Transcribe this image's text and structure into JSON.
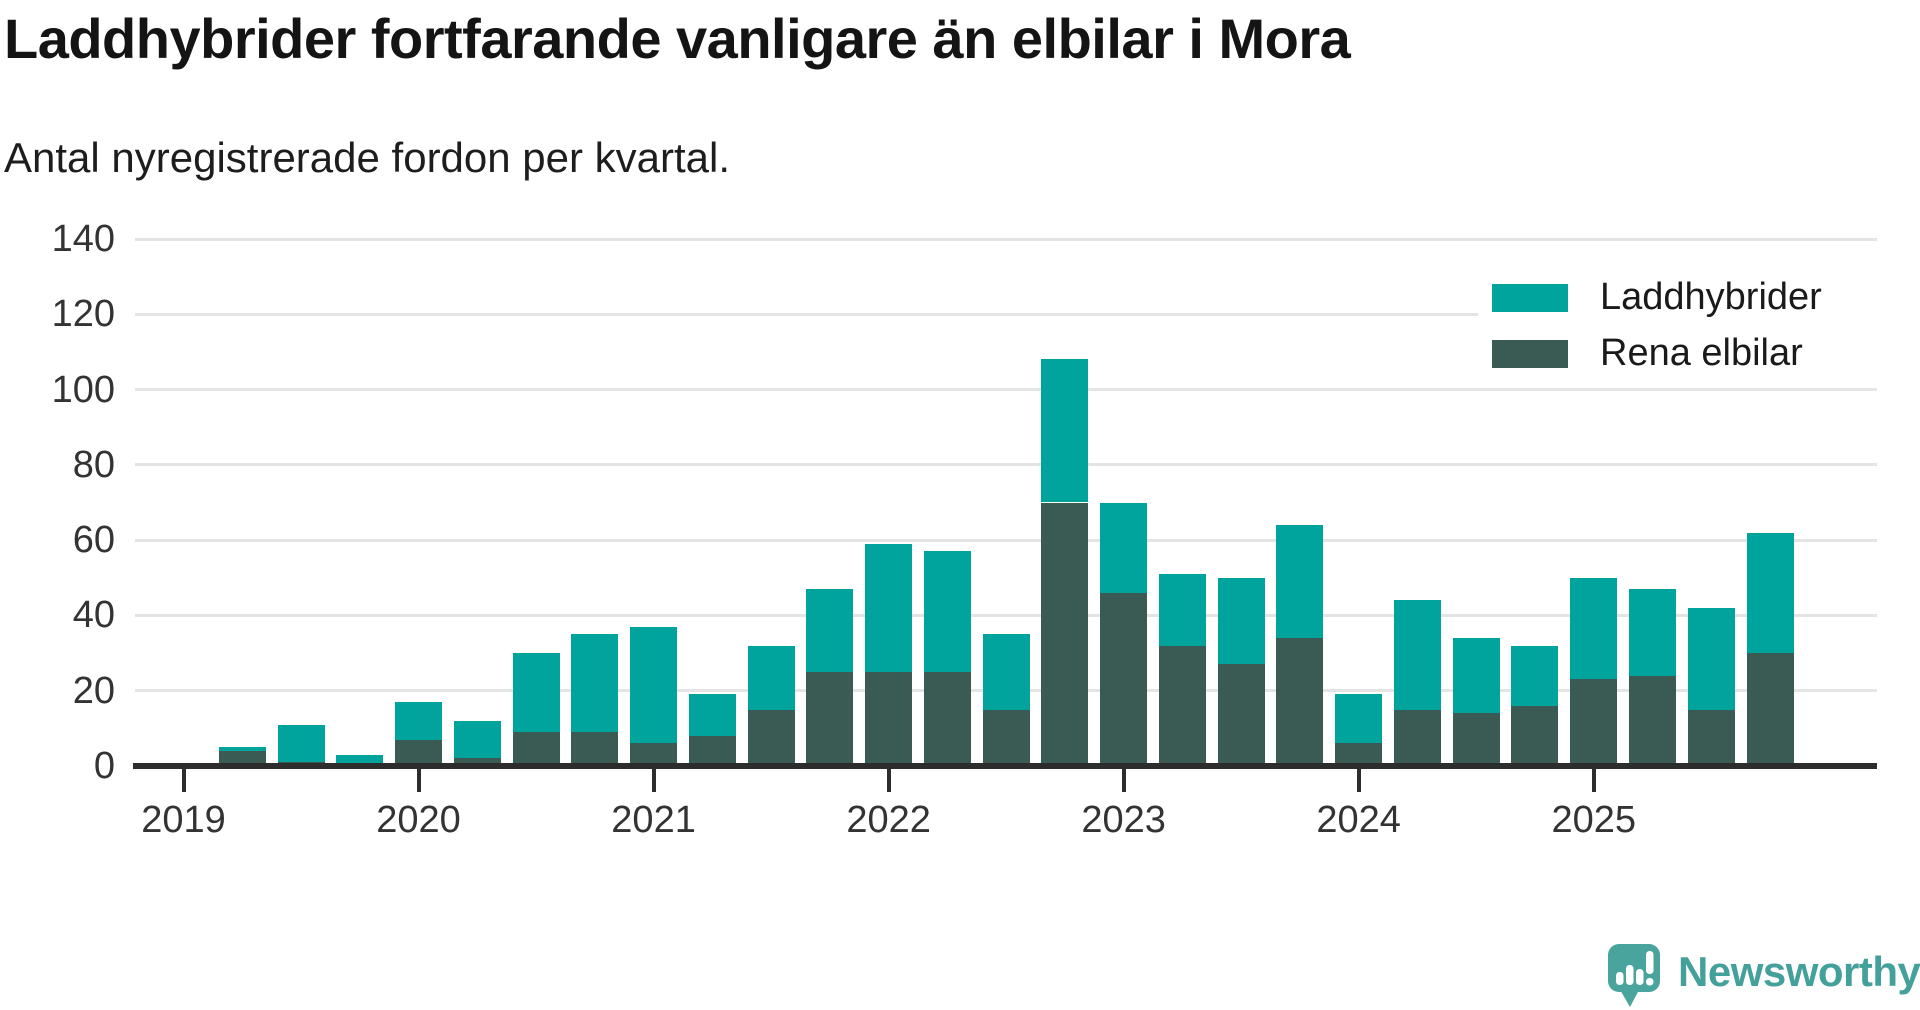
{
  "header": {
    "title": "Laddhybrider fortfarande vanligare än elbilar i Mora",
    "subtitle": "Antal nyregistrerade fordon per kvartal."
  },
  "colors": {
    "laddhybrider": "#00a49d",
    "rena_elbilar": "#3a5b53",
    "axis": "#2d2d2d",
    "grid": "#e4e4e4",
    "tick_text": "#333333",
    "logo": "#43a09a"
  },
  "legend": {
    "items": [
      {
        "label": "Laddhybrider",
        "color_key": "laddhybrider"
      },
      {
        "label": "Rena elbilar",
        "color_key": "rena_elbilar"
      }
    ]
  },
  "chart_data": {
    "type": "bar",
    "stacked": true,
    "title": "Laddhybrider fortfarande vanligare än elbilar i Mora",
    "subtitle": "Antal nyregistrerade fordon per kvartal.",
    "x": [
      "2019 Q1",
      "2019 Q2",
      "2019 Q3",
      "2019 Q4",
      "2020 Q1",
      "2020 Q2",
      "2020 Q3",
      "2020 Q4",
      "2021 Q1",
      "2021 Q2",
      "2021 Q3",
      "2021 Q4",
      "2022 Q1",
      "2022 Q2",
      "2022 Q3",
      "2022 Q4",
      "2023 Q1",
      "2023 Q2",
      "2023 Q3",
      "2023 Q4",
      "2024 Q1",
      "2024 Q2",
      "2024 Q3",
      "2024 Q4",
      "2025 Q1",
      "2025 Q2",
      "2025 Q3",
      "2025 Q4"
    ],
    "series": [
      {
        "name": "Laddhybrider",
        "values": [
          0,
          1,
          10,
          3,
          10,
          10,
          21,
          26,
          31,
          11,
          17,
          22,
          34,
          32,
          20,
          38,
          24,
          19,
          23,
          30,
          13,
          29,
          20,
          16,
          27,
          23,
          27,
          32
        ]
      },
      {
        "name": "Rena elbilar",
        "values": [
          0,
          4,
          1,
          0,
          7,
          2,
          9,
          9,
          6,
          8,
          15,
          25,
          25,
          25,
          15,
          70,
          46,
          32,
          27,
          34,
          6,
          15,
          14,
          16,
          23,
          24,
          15,
          30
        ]
      }
    ],
    "totals": [
      0,
      5,
      11,
      3,
      17,
      12,
      30,
      35,
      37,
      19,
      32,
      47,
      59,
      57,
      35,
      108,
      70,
      51,
      50,
      64,
      19,
      44,
      34,
      32,
      50,
      47,
      42,
      62
    ],
    "xticks": [
      "2019",
      "2020",
      "2021",
      "2022",
      "2023",
      "2024",
      "2025"
    ],
    "yticks": [
      0,
      20,
      40,
      60,
      80,
      100,
      120,
      140
    ],
    "ylim": [
      0,
      140
    ],
    "grid": true,
    "legend_position": "top-right"
  },
  "footer": {
    "brand": "Newsworthy"
  }
}
